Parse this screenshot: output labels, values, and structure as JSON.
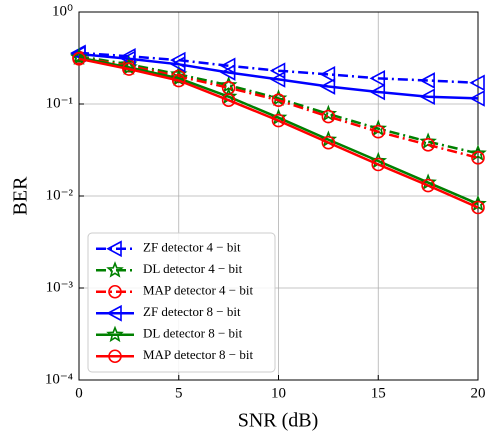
{
  "chart_data": {
    "type": "line",
    "x_label": "SNR (dB)",
    "y_label": "BER",
    "x": [
      0,
      2.5,
      5,
      7.5,
      10,
      12.5,
      15,
      17.5,
      20
    ],
    "xlim": [
      0,
      20
    ],
    "xticks": [
      0,
      5,
      10,
      15,
      20
    ],
    "ylim": [
      0.0001,
      1
    ],
    "y_scale": "log",
    "yticks": [
      {
        "value": 0.0001,
        "label": "10⁻⁴"
      },
      {
        "value": 0.001,
        "label": "10⁻³"
      },
      {
        "value": 0.01,
        "label": "10⁻²"
      },
      {
        "value": 0.1,
        "label": "10⁻¹"
      },
      {
        "value": 1,
        "label": "10⁰"
      }
    ],
    "grid": true,
    "legend_position": "lower-left",
    "series": [
      {
        "name": "ZF detector 4 − bit",
        "color": "#0000ff",
        "linestyle": "dashdot",
        "marker": "triangle-left",
        "values": [
          0.36,
          0.33,
          0.3,
          0.26,
          0.23,
          0.21,
          0.19,
          0.18,
          0.17
        ]
      },
      {
        "name": "DL detector 4 − bit",
        "color": "#008000",
        "linestyle": "dashdot",
        "marker": "star",
        "values": [
          0.33,
          0.27,
          0.21,
          0.16,
          0.115,
          0.078,
          0.054,
          0.039,
          0.029
        ]
      },
      {
        "name": "MAP detector 4 − bit",
        "color": "#ff0000",
        "linestyle": "dashdot",
        "marker": "circle",
        "values": [
          0.32,
          0.26,
          0.2,
          0.15,
          0.11,
          0.073,
          0.05,
          0.036,
          0.026
        ]
      },
      {
        "name": "ZF detector 8 − bit",
        "color": "#0000ff",
        "linestyle": "solid",
        "marker": "triangle-left",
        "values": [
          0.35,
          0.31,
          0.27,
          0.22,
          0.185,
          0.155,
          0.135,
          0.12,
          0.115
        ]
      },
      {
        "name": "DL detector 8 − bit",
        "color": "#008000",
        "linestyle": "solid",
        "marker": "star",
        "values": [
          0.32,
          0.25,
          0.19,
          0.12,
          0.071,
          0.041,
          0.024,
          0.014,
          0.0082
        ]
      },
      {
        "name": "MAP detector 8 − bit",
        "color": "#ff0000",
        "linestyle": "solid",
        "marker": "circle",
        "values": [
          0.31,
          0.24,
          0.18,
          0.11,
          0.066,
          0.038,
          0.022,
          0.013,
          0.0075
        ]
      }
    ]
  }
}
